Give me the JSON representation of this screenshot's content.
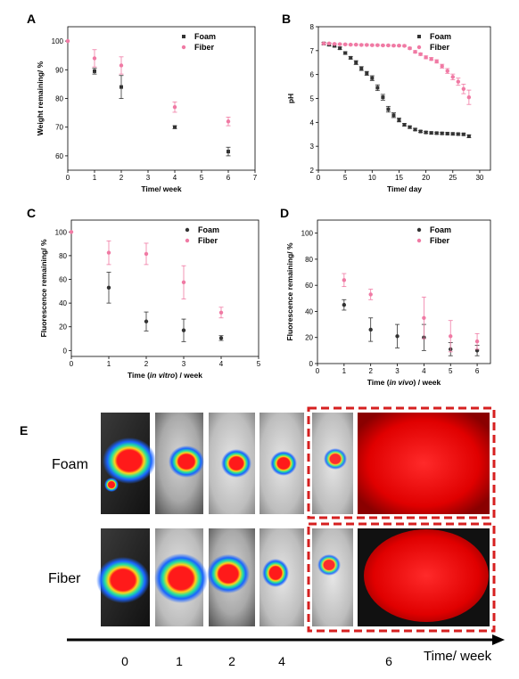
{
  "colors": {
    "foam": "#333333",
    "fiber": "#f07aa4",
    "dashed_box": "#d62020"
  },
  "chart_data": [
    {
      "panel": "A",
      "type": "scatter",
      "xlabel": "Time/ week",
      "ylabel": "Weight remaining/ %",
      "xlim": [
        0,
        7
      ],
      "ylim": [
        55,
        105
      ],
      "xticks": [
        0,
        1,
        2,
        3,
        4,
        5,
        6,
        7
      ],
      "yticks": [
        60,
        70,
        80,
        90,
        100
      ],
      "legend_position": "top-right",
      "series": [
        {
          "name": "Foam",
          "color": "#333333",
          "marker": "square",
          "x": [
            1,
            2,
            4,
            6
          ],
          "y": [
            89.5,
            84,
            70,
            61.5
          ],
          "err": [
            1,
            4,
            0.5,
            1.5
          ]
        },
        {
          "name": "Fiber",
          "color": "#f07aa4",
          "marker": "circle",
          "x": [
            0,
            1,
            2,
            4,
            6
          ],
          "y": [
            100,
            94,
            91.5,
            77,
            72
          ],
          "err": [
            0,
            3,
            3,
            1.8,
            1.5
          ]
        }
      ]
    },
    {
      "panel": "B",
      "type": "line",
      "xlabel": "Time/ day",
      "ylabel": "pH",
      "xlim": [
        0,
        32
      ],
      "ylim": [
        2,
        8
      ],
      "xticks": [
        0,
        5,
        10,
        15,
        20,
        25,
        30
      ],
      "yticks": [
        2,
        3,
        4,
        5,
        6,
        7,
        8
      ],
      "legend_position": "top-right",
      "series": [
        {
          "name": "Foam",
          "color": "#333333",
          "marker": "square",
          "x": [
            1,
            2,
            3,
            4,
            5,
            6,
            7,
            8,
            9,
            10,
            11,
            12,
            13,
            14,
            15,
            16,
            17,
            18,
            19,
            20,
            21,
            22,
            23,
            24,
            25,
            26,
            27,
            28
          ],
          "y": [
            7.3,
            7.25,
            7.2,
            7.1,
            6.9,
            6.7,
            6.5,
            6.25,
            6.05,
            5.85,
            5.45,
            5.05,
            4.55,
            4.3,
            4.1,
            3.9,
            3.8,
            3.7,
            3.62,
            3.58,
            3.56,
            3.55,
            3.54,
            3.53,
            3.52,
            3.51,
            3.5,
            3.42
          ],
          "err": [
            0.05,
            0.05,
            0.05,
            0.05,
            0.05,
            0.05,
            0.08,
            0.08,
            0.08,
            0.1,
            0.12,
            0.12,
            0.12,
            0.1,
            0.08,
            0.05,
            0.05,
            0.05,
            0.04,
            0.04,
            0.04,
            0.04,
            0.04,
            0.04,
            0.04,
            0.04,
            0.04,
            0.06
          ]
        },
        {
          "name": "Fiber",
          "color": "#f07aa4",
          "marker": "circle",
          "x": [
            1,
            2,
            3,
            4,
            5,
            6,
            7,
            8,
            9,
            10,
            11,
            12,
            13,
            14,
            15,
            16,
            17,
            18,
            19,
            20,
            21,
            22,
            23,
            24,
            25,
            26,
            27,
            28
          ],
          "y": [
            7.3,
            7.3,
            7.28,
            7.27,
            7.26,
            7.25,
            7.25,
            7.24,
            7.24,
            7.23,
            7.23,
            7.22,
            7.22,
            7.21,
            7.21,
            7.2,
            7.1,
            6.95,
            6.85,
            6.72,
            6.65,
            6.55,
            6.35,
            6.15,
            5.9,
            5.7,
            5.4,
            5.05
          ],
          "err": [
            0.03,
            0.03,
            0.03,
            0.03,
            0.03,
            0.03,
            0.03,
            0.03,
            0.03,
            0.03,
            0.03,
            0.03,
            0.03,
            0.03,
            0.03,
            0.03,
            0.04,
            0.05,
            0.05,
            0.06,
            0.06,
            0.07,
            0.08,
            0.1,
            0.12,
            0.15,
            0.2,
            0.3
          ]
        }
      ]
    },
    {
      "panel": "C",
      "type": "scatter",
      "xlabel": "Time (in vitro) / week",
      "ylabel": "Fluorescence remaining/ %",
      "xlim": [
        0,
        5
      ],
      "ylim": [
        -5,
        110
      ],
      "xticks": [
        0,
        1,
        2,
        3,
        4,
        5
      ],
      "yticks": [
        0,
        20,
        40,
        60,
        80,
        100
      ],
      "legend_position": "top-right",
      "series": [
        {
          "name": "Foam",
          "color": "#333333",
          "marker": "circle",
          "x": [
            1,
            2,
            3,
            4
          ],
          "y": [
            53,
            24.5,
            17,
            10.5
          ],
          "err": [
            13,
            8,
            9.5,
            2
          ]
        },
        {
          "name": "Fiber",
          "color": "#f07aa4",
          "marker": "circle",
          "x": [
            0,
            1,
            2,
            3,
            4
          ],
          "y": [
            100,
            82.5,
            81.5,
            57.5,
            32
          ],
          "err": [
            0,
            10,
            9,
            14,
            4.5
          ]
        }
      ]
    },
    {
      "panel": "D",
      "type": "scatter",
      "xlabel": "Time (in vivo) / week",
      "ylabel": "Fluorescence remaining/ %",
      "xlim": [
        0,
        6.5
      ],
      "ylim": [
        0,
        110
      ],
      "xticks": [
        0,
        1,
        2,
        3,
        4,
        5,
        6
      ],
      "yticks": [
        0,
        20,
        40,
        60,
        80,
        100
      ],
      "legend_position": "top-right",
      "series": [
        {
          "name": "Foam",
          "color": "#333333",
          "marker": "circle",
          "x": [
            1,
            2,
            3,
            4,
            5,
            6
          ],
          "y": [
            45,
            26,
            21,
            20,
            11,
            10
          ],
          "err": [
            4,
            9,
            9,
            10,
            5,
            4
          ]
        },
        {
          "name": "Fiber",
          "color": "#f07aa4",
          "marker": "circle",
          "x": [
            1,
            2,
            3,
            4,
            5,
            6
          ],
          "y": [
            64,
            53,
            null,
            35,
            21,
            17
          ],
          "err": [
            5,
            4,
            0,
            16,
            12,
            6
          ]
        }
      ]
    }
  ],
  "panel_e": {
    "letter": "E",
    "rows": [
      "Foam",
      "Fiber"
    ],
    "timepoints": [
      "0",
      "1",
      "2",
      "4",
      "6"
    ],
    "time_label": "Time/ week"
  }
}
